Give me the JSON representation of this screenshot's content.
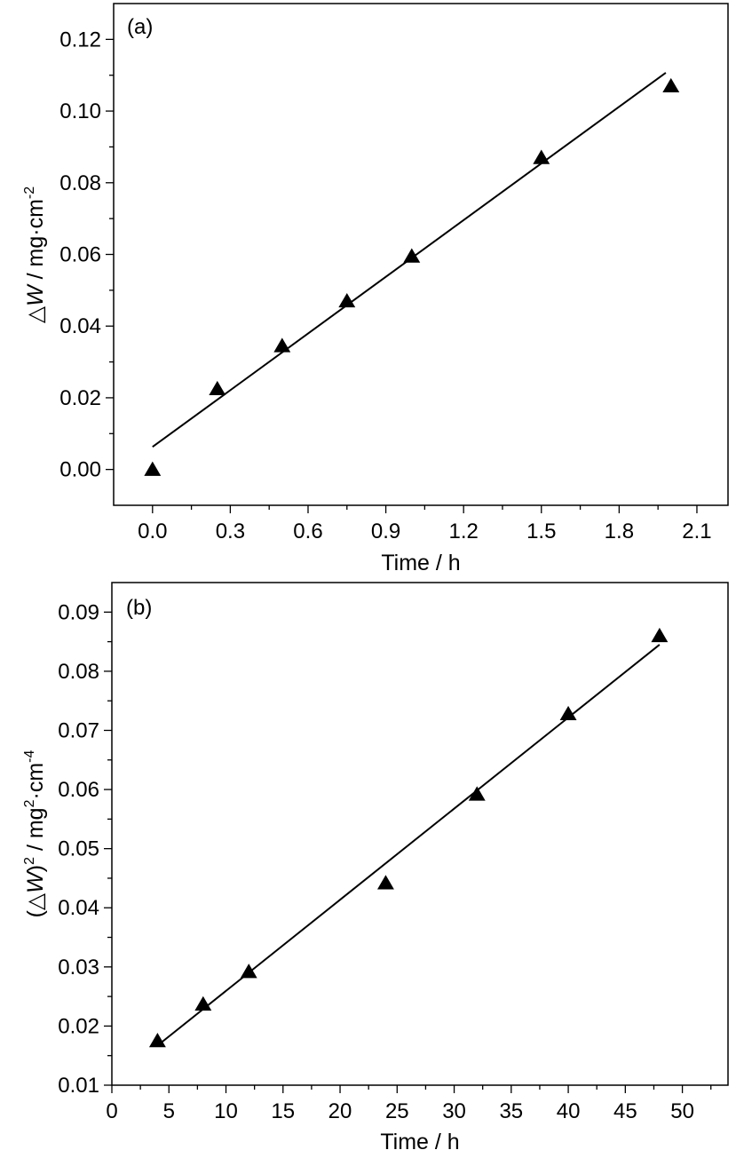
{
  "chart_data": [
    {
      "type": "scatter",
      "panel_label": "(a)",
      "xlabel": "Time / h",
      "ylabel": {
        "prefix": "△",
        "var": "W",
        "mid": " / mg·cm",
        "sup": "-2"
      },
      "xlim": [
        -0.15,
        2.22
      ],
      "ylim": [
        -0.01,
        0.13
      ],
      "xticks": [
        0.0,
        0.3,
        0.6,
        0.9,
        1.2,
        1.5,
        1.8,
        2.1
      ],
      "xtick_labels": [
        "0.0",
        "0.3",
        "0.6",
        "0.9",
        "1.2",
        "1.5",
        "1.8",
        "2.1"
      ],
      "yticks": [
        0.0,
        0.02,
        0.04,
        0.06,
        0.08,
        0.1,
        0.12
      ],
      "ytick_labels": [
        "0.00",
        "0.02",
        "0.04",
        "0.06",
        "0.08",
        "0.10",
        "0.12"
      ],
      "series": [
        {
          "marker": "triangle",
          "color": "#000000",
          "x": [
            0.0,
            0.25,
            0.5,
            0.75,
            1.0,
            1.5,
            2.0
          ],
          "y": [
            0.0,
            0.0225,
            0.0345,
            0.047,
            0.0595,
            0.087,
            0.107
          ]
        }
      ],
      "fit_line": {
        "x": [
          0.0,
          1.98
        ],
        "y": [
          0.0063,
          0.1107
        ],
        "color": "#000000"
      },
      "grid": false,
      "legend": false
    },
    {
      "type": "scatter",
      "panel_label": "(b)",
      "xlabel": "Time / h",
      "ylabel": {
        "prefix": "(△",
        "var": "W",
        "mid": ")",
        "sup": "2",
        "mid2": " / mg",
        "sup2": "2",
        "mid3": "·cm",
        "sup3": "-4"
      },
      "xlim": [
        0,
        54
      ],
      "ylim": [
        0.01,
        0.095
      ],
      "xticks": [
        0,
        5,
        10,
        15,
        20,
        25,
        30,
        35,
        40,
        45,
        50
      ],
      "xtick_labels": [
        "0",
        "5",
        "10",
        "15",
        "20",
        "25",
        "30",
        "35",
        "40",
        "45",
        "50"
      ],
      "yticks": [
        0.01,
        0.02,
        0.03,
        0.04,
        0.05,
        0.06,
        0.07,
        0.08,
        0.09
      ],
      "ytick_labels": [
        "0.01",
        "0.02",
        "0.03",
        "0.04",
        "0.05",
        "0.06",
        "0.07",
        "0.08",
        "0.09"
      ],
      "series": [
        {
          "marker": "triangle",
          "color": "#000000",
          "x": [
            4,
            8,
            12,
            24,
            32,
            40,
            48
          ],
          "y": [
            0.0175,
            0.0237,
            0.0292,
            0.0442,
            0.0592,
            0.0728,
            0.086
          ]
        }
      ],
      "fit_line": {
        "x": [
          4,
          48
        ],
        "y": [
          0.0167,
          0.0845
        ],
        "color": "#000000"
      },
      "grid": false,
      "legend": false
    }
  ]
}
